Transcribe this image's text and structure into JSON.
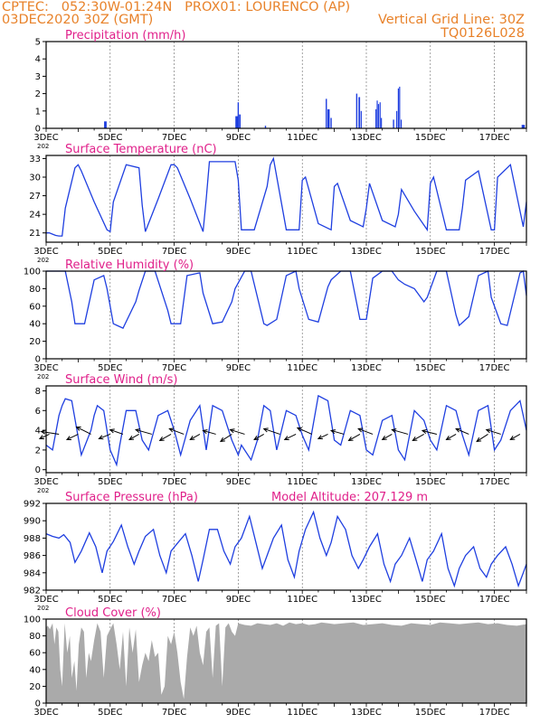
{
  "header": {
    "line1": "CPTEC:   052:30W-01:24N   PROX01: LOURENCO (AP)",
    "line2_left": "03DEC2020 30Z (GMT)",
    "line2_right": "Vertical Grid Line: 30Z",
    "line3_right": "TQ0126L028"
  },
  "colors": {
    "header": "#e8822a",
    "title": "#e0208a",
    "series": "#1f3fe0",
    "cloud": "#aaaaaa",
    "frame": "#000000"
  },
  "chart_data": [
    {
      "id": "precip",
      "type": "bar",
      "title": "Precipitation (mm/h)",
      "ylim": [
        0,
        5
      ],
      "yticks": [
        0,
        1,
        2,
        3,
        4,
        5
      ],
      "xlim": [
        0,
        15
      ],
      "xtick_positions": [
        0,
        2,
        4,
        6,
        8,
        10,
        12,
        14
      ],
      "xtick_labels": [
        "3DEC",
        "5DEC",
        "7DEC",
        "9DEC",
        "11DEC",
        "13DEC",
        "15DEC",
        "17DEC"
      ],
      "x_sub": "202",
      "grid": "vertical dashed",
      "events": [
        {
          "t": 1.85,
          "w": 0.08,
          "v": 0.4
        },
        {
          "t": 5.95,
          "w": 0.08,
          "v": 0.7
        },
        {
          "t": 6.0,
          "w": 0.04,
          "v": 1.5
        },
        {
          "t": 6.05,
          "w": 0.05,
          "v": 0.8
        },
        {
          "t": 6.85,
          "w": 0.04,
          "v": 0.15
        },
        {
          "t": 8.75,
          "w": 0.04,
          "v": 1.7
        },
        {
          "t": 8.82,
          "w": 0.07,
          "v": 1.1
        },
        {
          "t": 8.9,
          "w": 0.04,
          "v": 0.6
        },
        {
          "t": 9.7,
          "w": 0.04,
          "v": 2.0
        },
        {
          "t": 9.78,
          "w": 0.05,
          "v": 1.8
        },
        {
          "t": 9.84,
          "w": 0.03,
          "v": 1.0
        },
        {
          "t": 10.3,
          "w": 0.03,
          "v": 1.1
        },
        {
          "t": 10.34,
          "w": 0.03,
          "v": 1.6
        },
        {
          "t": 10.38,
          "w": 0.03,
          "v": 1.4
        },
        {
          "t": 10.43,
          "w": 0.03,
          "v": 1.5
        },
        {
          "t": 10.47,
          "w": 0.03,
          "v": 0.6
        },
        {
          "t": 10.85,
          "w": 0.04,
          "v": 0.5
        },
        {
          "t": 10.95,
          "w": 0.03,
          "v": 1.0
        },
        {
          "t": 11.0,
          "w": 0.03,
          "v": 2.3
        },
        {
          "t": 11.04,
          "w": 0.03,
          "v": 2.4
        },
        {
          "t": 11.09,
          "w": 0.03,
          "v": 0.5
        },
        {
          "t": 14.9,
          "w": 0.1,
          "v": 0.2
        }
      ]
    },
    {
      "id": "temp",
      "type": "line",
      "title": "Surface Temperature (nC)",
      "ylim": [
        19.5,
        33.5
      ],
      "yticks": [
        21,
        24,
        27,
        30,
        33
      ],
      "xlim": [
        0,
        15
      ],
      "xtick_positions": [
        0,
        2,
        4,
        6,
        8,
        10,
        12,
        14
      ],
      "xtick_labels": [
        "3DEC",
        "5DEC",
        "7DEC",
        "9DEC",
        "11DEC",
        "13DEC",
        "15DEC",
        "17DEC"
      ],
      "x_sub": "202",
      "grid": "vertical dashed",
      "x": [
        0,
        0.1,
        0.2,
        0.3,
        0.4,
        0.5,
        0.6,
        0.9,
        1,
        1.1,
        1.5,
        1.9,
        2,
        2.1,
        2.5,
        2.9,
        3,
        3.1,
        3.5,
        3.9,
        4,
        4.1,
        4.5,
        4.9,
        5,
        5.1,
        5.5,
        5.9,
        6,
        6.1,
        6.5,
        6.9,
        7,
        7.1,
        7.5,
        7.9,
        8,
        8.1,
        8.5,
        8.9,
        9,
        9.1,
        9.5,
        9.9,
        10,
        10.1,
        10.5,
        10.9,
        11,
        11.1,
        11.5,
        11.9,
        12,
        12.1,
        12.5,
        12.9,
        13,
        13.1,
        13.5,
        13.9,
        14,
        14.1,
        14.5,
        14.9,
        15
      ],
      "values": [
        21.0,
        21.0,
        20.8,
        20.6,
        20.5,
        20.5,
        25.0,
        31.5,
        32.0,
        31.0,
        26.0,
        21.5,
        21.2,
        26.0,
        32.0,
        31.5,
        25.5,
        21.2,
        26.5,
        32.0,
        32.0,
        31.5,
        26.5,
        21.2,
        26.5,
        32.5,
        32.5,
        32.5,
        29.5,
        21.5,
        21.5,
        28.5,
        32.0,
        33.0,
        21.5,
        21.5,
        29.5,
        30.0,
        22.5,
        21.5,
        28.5,
        29.0,
        23.0,
        22.0,
        25.0,
        29.0,
        23.0,
        22.0,
        24.0,
        28.0,
        24.5,
        21.5,
        29.0,
        30.0,
        21.5,
        21.5,
        25.0,
        29.5,
        31.0,
        21.5,
        21.5,
        30.0,
        32.0,
        22.0,
        26.0
      ]
    },
    {
      "id": "rh",
      "type": "line",
      "title": "Relative Humidity (%)",
      "ylim": [
        0,
        100
      ],
      "yticks": [
        0,
        20,
        40,
        60,
        80,
        100
      ],
      "xlim": [
        0,
        15
      ],
      "xtick_positions": [
        0,
        2,
        4,
        6,
        8,
        10,
        12,
        14
      ],
      "xtick_labels": [
        "3DEC",
        "5DEC",
        "7DEC",
        "9DEC",
        "11DEC",
        "13DEC",
        "15DEC",
        "17DEC"
      ],
      "x_sub": "202",
      "grid": "vertical dashed",
      "x": [
        0,
        0.5,
        0.6,
        0.8,
        0.9,
        1.2,
        1.5,
        1.8,
        1.9,
        2.1,
        2.4,
        2.8,
        2.9,
        3.1,
        3.4,
        3.8,
        3.9,
        4.2,
        4.4,
        4.8,
        4.9,
        5.2,
        5.5,
        5.8,
        5.9,
        6.2,
        6.4,
        6.8,
        6.9,
        7.2,
        7.5,
        7.8,
        7.9,
        8.2,
        8.5,
        8.8,
        8.9,
        9.2,
        9.5,
        9.8,
        10.0,
        10.2,
        10.5,
        10.8,
        11.0,
        11.2,
        11.5,
        11.8,
        11.9,
        12.2,
        12.5,
        12.8,
        12.9,
        13.2,
        13.5,
        13.8,
        13.9,
        14.2,
        14.4,
        14.8,
        14.9,
        15
      ],
      "values": [
        100,
        100,
        100,
        65,
        40,
        40,
        90,
        95,
        80,
        40,
        35,
        65,
        78,
        100,
        100,
        55,
        40,
        40,
        95,
        98,
        75,
        40,
        42,
        65,
        80,
        100,
        100,
        40,
        38,
        45,
        95,
        100,
        80,
        45,
        42,
        82,
        90,
        100,
        100,
        45,
        45,
        92,
        100,
        100,
        90,
        85,
        80,
        65,
        70,
        100,
        100,
        50,
        38,
        48,
        95,
        100,
        70,
        40,
        38,
        98,
        100,
        72
      ]
    },
    {
      "id": "wind",
      "type": "line",
      "title": "Surface Wind (m/s)",
      "ylim": [
        -0.3,
        8.5
      ],
      "yticks": [
        0,
        2,
        4,
        6,
        8
      ],
      "xlim": [
        0,
        15
      ],
      "xtick_positions": [
        0,
        2,
        4,
        6,
        8,
        10,
        12,
        14
      ],
      "xtick_labels": [
        "3DEC",
        "5DEC",
        "7DEC",
        "9DEC",
        "11DEC",
        "13DEC",
        "15DEC",
        "17DEC"
      ],
      "x_sub": "202",
      "grid": "vertical dashed",
      "x": [
        0,
        0.2,
        0.4,
        0.5,
        0.6,
        0.8,
        1.1,
        1.4,
        1.5,
        1.6,
        1.8,
        2.0,
        2.2,
        2.3,
        2.5,
        2.8,
        3.0,
        3.2,
        3.5,
        3.8,
        4.0,
        4.2,
        4.5,
        4.8,
        5.0,
        5.2,
        5.5,
        5.8,
        6.0,
        6.1,
        6.4,
        6.6,
        6.8,
        7.0,
        7.2,
        7.5,
        7.8,
        8.0,
        8.2,
        8.5,
        8.8,
        9.0,
        9.2,
        9.5,
        9.8,
        10.0,
        10.2,
        10.5,
        10.8,
        11.0,
        11.2,
        11.5,
        11.8,
        12.0,
        12.2,
        12.5,
        12.8,
        13.0,
        13.2,
        13.5,
        13.8,
        14.0,
        14.2,
        14.5,
        14.8,
        15
      ],
      "values": [
        2.5,
        2.0,
        5.5,
        6.5,
        7.2,
        7.0,
        1.5,
        4.0,
        5.5,
        6.5,
        6.0,
        2.0,
        0.5,
        2.5,
        6.0,
        6.0,
        3.0,
        2.0,
        5.5,
        6.0,
        4.0,
        1.5,
        5.0,
        6.5,
        2.0,
        6.5,
        6.0,
        3.0,
        1.5,
        2.5,
        1.0,
        3.0,
        6.5,
        6.0,
        2.0,
        6.0,
        5.5,
        3.5,
        2.0,
        7.5,
        7.0,
        3.0,
        2.5,
        6.0,
        5.5,
        2.0,
        1.5,
        5.0,
        5.5,
        2.0,
        1.0,
        6.0,
        5.0,
        3.0,
        2.0,
        6.5,
        6.0,
        3.5,
        1.5,
        6.0,
        6.5,
        2.0,
        3.0,
        6.0,
        7.0,
        4.0
      ],
      "arrows": {
        "y": 3.6,
        "t": [
          0.1,
          0.4,
          1.0,
          1.4,
          2.0,
          2.4,
          2.9,
          3.3,
          3.9,
          4.3,
          4.8,
          5.3,
          5.8,
          6.2,
          6.8,
          7.3,
          7.8,
          8.3,
          8.8,
          9.3,
          9.8,
          10.2,
          10.8,
          11.3,
          11.8,
          12.2,
          12.8,
          13.2,
          13.8,
          14.2,
          14.8
        ],
        "dx": [
          -0.3,
          -0.55,
          -0.35,
          -0.45,
          -0.35,
          -0.4,
          -0.3,
          -0.5,
          -0.35,
          -0.45,
          -0.3,
          -0.4,
          -0.35,
          -0.45,
          -0.3,
          -0.5,
          -0.35,
          -0.45,
          -0.3,
          -0.4,
          -0.35,
          -0.45,
          -0.3,
          -0.5,
          -0.35,
          -0.45,
          -0.3,
          -0.4,
          -0.35,
          -0.45,
          -0.3
        ],
        "dy": [
          -0.5,
          0.3,
          -0.6,
          0.8,
          -0.5,
          0.5,
          -0.6,
          0.5,
          -0.7,
          0.6,
          -0.6,
          0.4,
          -0.8,
          0.5,
          -0.6,
          0.6,
          -0.6,
          0.7,
          -0.5,
          0.4,
          -0.7,
          0.6,
          -0.6,
          0.5,
          -0.7,
          0.4,
          -0.6,
          0.6,
          -0.8,
          0.5,
          -0.6
        ]
      }
    },
    {
      "id": "press",
      "type": "line",
      "title": "Surface Pressure (hPa)",
      "annotation": "Model Altitude: 207.129 m",
      "ylim": [
        982,
        992
      ],
      "yticks": [
        982,
        984,
        986,
        988,
        990,
        992
      ],
      "xlim": [
        0,
        15
      ],
      "xtick_positions": [
        0,
        2,
        4,
        6,
        8,
        10,
        12,
        14
      ],
      "xtick_labels": [
        "3DEC",
        "5DEC",
        "7DEC",
        "9DEC",
        "11DEC",
        "13DEC",
        "15DEC",
        "17DEC"
      ],
      "x_sub": "202",
      "grid": "vertical dashed",
      "x": [
        0,
        0.2,
        0.4,
        0.55,
        0.75,
        0.9,
        1.1,
        1.35,
        1.55,
        1.75,
        1.9,
        2.1,
        2.35,
        2.55,
        2.75,
        2.9,
        3.1,
        3.35,
        3.55,
        3.75,
        3.9,
        4.1,
        4.35,
        4.55,
        4.75,
        4.9,
        5.1,
        5.35,
        5.55,
        5.75,
        5.9,
        6.1,
        6.35,
        6.55,
        6.75,
        6.9,
        7.1,
        7.35,
        7.55,
        7.75,
        7.9,
        8.1,
        8.35,
        8.55,
        8.75,
        8.9,
        9.1,
        9.35,
        9.55,
        9.75,
        9.9,
        10.1,
        10.35,
        10.55,
        10.75,
        10.9,
        11.1,
        11.35,
        11.55,
        11.75,
        11.9,
        12.1,
        12.35,
        12.55,
        12.75,
        12.9,
        13.1,
        13.35,
        13.55,
        13.75,
        13.9,
        14.1,
        14.35,
        14.55,
        14.75,
        14.9,
        15
      ],
      "values": [
        988.5,
        988.2,
        988.0,
        988.4,
        987.5,
        985.2,
        986.5,
        988.6,
        987.0,
        984.0,
        986.5,
        987.6,
        989.5,
        987.0,
        985.0,
        986.5,
        988.2,
        989.0,
        986.0,
        984.0,
        986.5,
        987.4,
        988.5,
        986.0,
        983.0,
        985.5,
        989.0,
        989.0,
        986.5,
        985.0,
        987.0,
        988.0,
        990.5,
        987.5,
        984.5,
        986.0,
        988.0,
        989.5,
        985.5,
        983.5,
        986.5,
        989.0,
        991.0,
        988.0,
        986.0,
        987.5,
        990.5,
        989.0,
        986.0,
        984.5,
        985.5,
        987.0,
        988.5,
        985.0,
        983.0,
        985.0,
        986.0,
        988.0,
        985.5,
        983.0,
        985.5,
        986.5,
        988.5,
        984.5,
        982.5,
        984.5,
        986.0,
        987.0,
        984.5,
        983.5,
        985.0,
        986.0,
        987.0,
        985.0,
        982.5,
        984.0,
        985.0
      ]
    },
    {
      "id": "cloud",
      "type": "area",
      "title": "Cloud Cover (%)",
      "ylim": [
        0,
        100
      ],
      "yticks": [
        0,
        20,
        40,
        60,
        80,
        100
      ],
      "xlim": [
        0,
        15
      ],
      "xtick_positions": [
        0,
        2,
        4,
        6,
        8,
        10,
        12,
        14
      ],
      "xtick_labels": [
        "3DEC",
        "5DEC",
        "7DEC",
        "9DEC",
        "11DEC",
        "13DEC",
        "15DEC",
        "17DEC"
      ],
      "grid": "vertical dashed",
      "x": [
        0,
        0.05,
        0.12,
        0.2,
        0.26,
        0.32,
        0.38,
        0.44,
        0.5,
        0.58,
        0.66,
        0.74,
        0.8,
        0.88,
        0.95,
        1.02,
        1.1,
        1.18,
        1.25,
        1.33,
        1.4,
        1.5,
        1.6,
        1.7,
        1.8,
        1.9,
        2.0,
        2.1,
        2.2,
        2.3,
        2.4,
        2.5,
        2.6,
        2.7,
        2.8,
        2.9,
        3.0,
        3.1,
        3.2,
        3.3,
        3.4,
        3.5,
        3.6,
        3.7,
        3.8,
        3.9,
        4.0,
        4.1,
        4.2,
        4.3,
        4.4,
        4.5,
        4.6,
        4.7,
        4.8,
        4.9,
        5.0,
        5.1,
        5.2,
        5.3,
        5.4,
        5.5,
        5.6,
        5.7,
        5.8,
        5.9,
        6.0,
        6.2,
        6.4,
        6.6,
        6.8,
        7.0,
        7.2,
        7.4,
        7.6,
        7.8,
        8.0,
        8.2,
        8.4,
        8.6,
        8.8,
        9.0,
        9.3,
        9.6,
        9.9,
        10.2,
        10.5,
        10.8,
        11.1,
        11.4,
        11.7,
        12.0,
        12.3,
        12.6,
        12.9,
        13.2,
        13.5,
        13.8,
        14.1,
        14.4,
        14.7,
        15
      ],
      "values": [
        90,
        92,
        88,
        95,
        70,
        90,
        85,
        40,
        20,
        95,
        60,
        80,
        30,
        50,
        15,
        70,
        90,
        85,
        30,
        60,
        50,
        75,
        95,
        85,
        30,
        80,
        88,
        95,
        70,
        40,
        85,
        20,
        90,
        60,
        88,
        25,
        45,
        60,
        50,
        75,
        55,
        60,
        10,
        20,
        80,
        70,
        85,
        60,
        25,
        5,
        55,
        90,
        80,
        92,
        60,
        45,
        85,
        90,
        30,
        92,
        95,
        20,
        90,
        95,
        85,
        80,
        95,
        93,
        92,
        95,
        94,
        93,
        95,
        92,
        96,
        94,
        95,
        93,
        94,
        96,
        95,
        94,
        95,
        96,
        93,
        94,
        95,
        93,
        92,
        95,
        94,
        93,
        96,
        95,
        94,
        95,
        96,
        94,
        95,
        93,
        92,
        94
      ]
    }
  ]
}
